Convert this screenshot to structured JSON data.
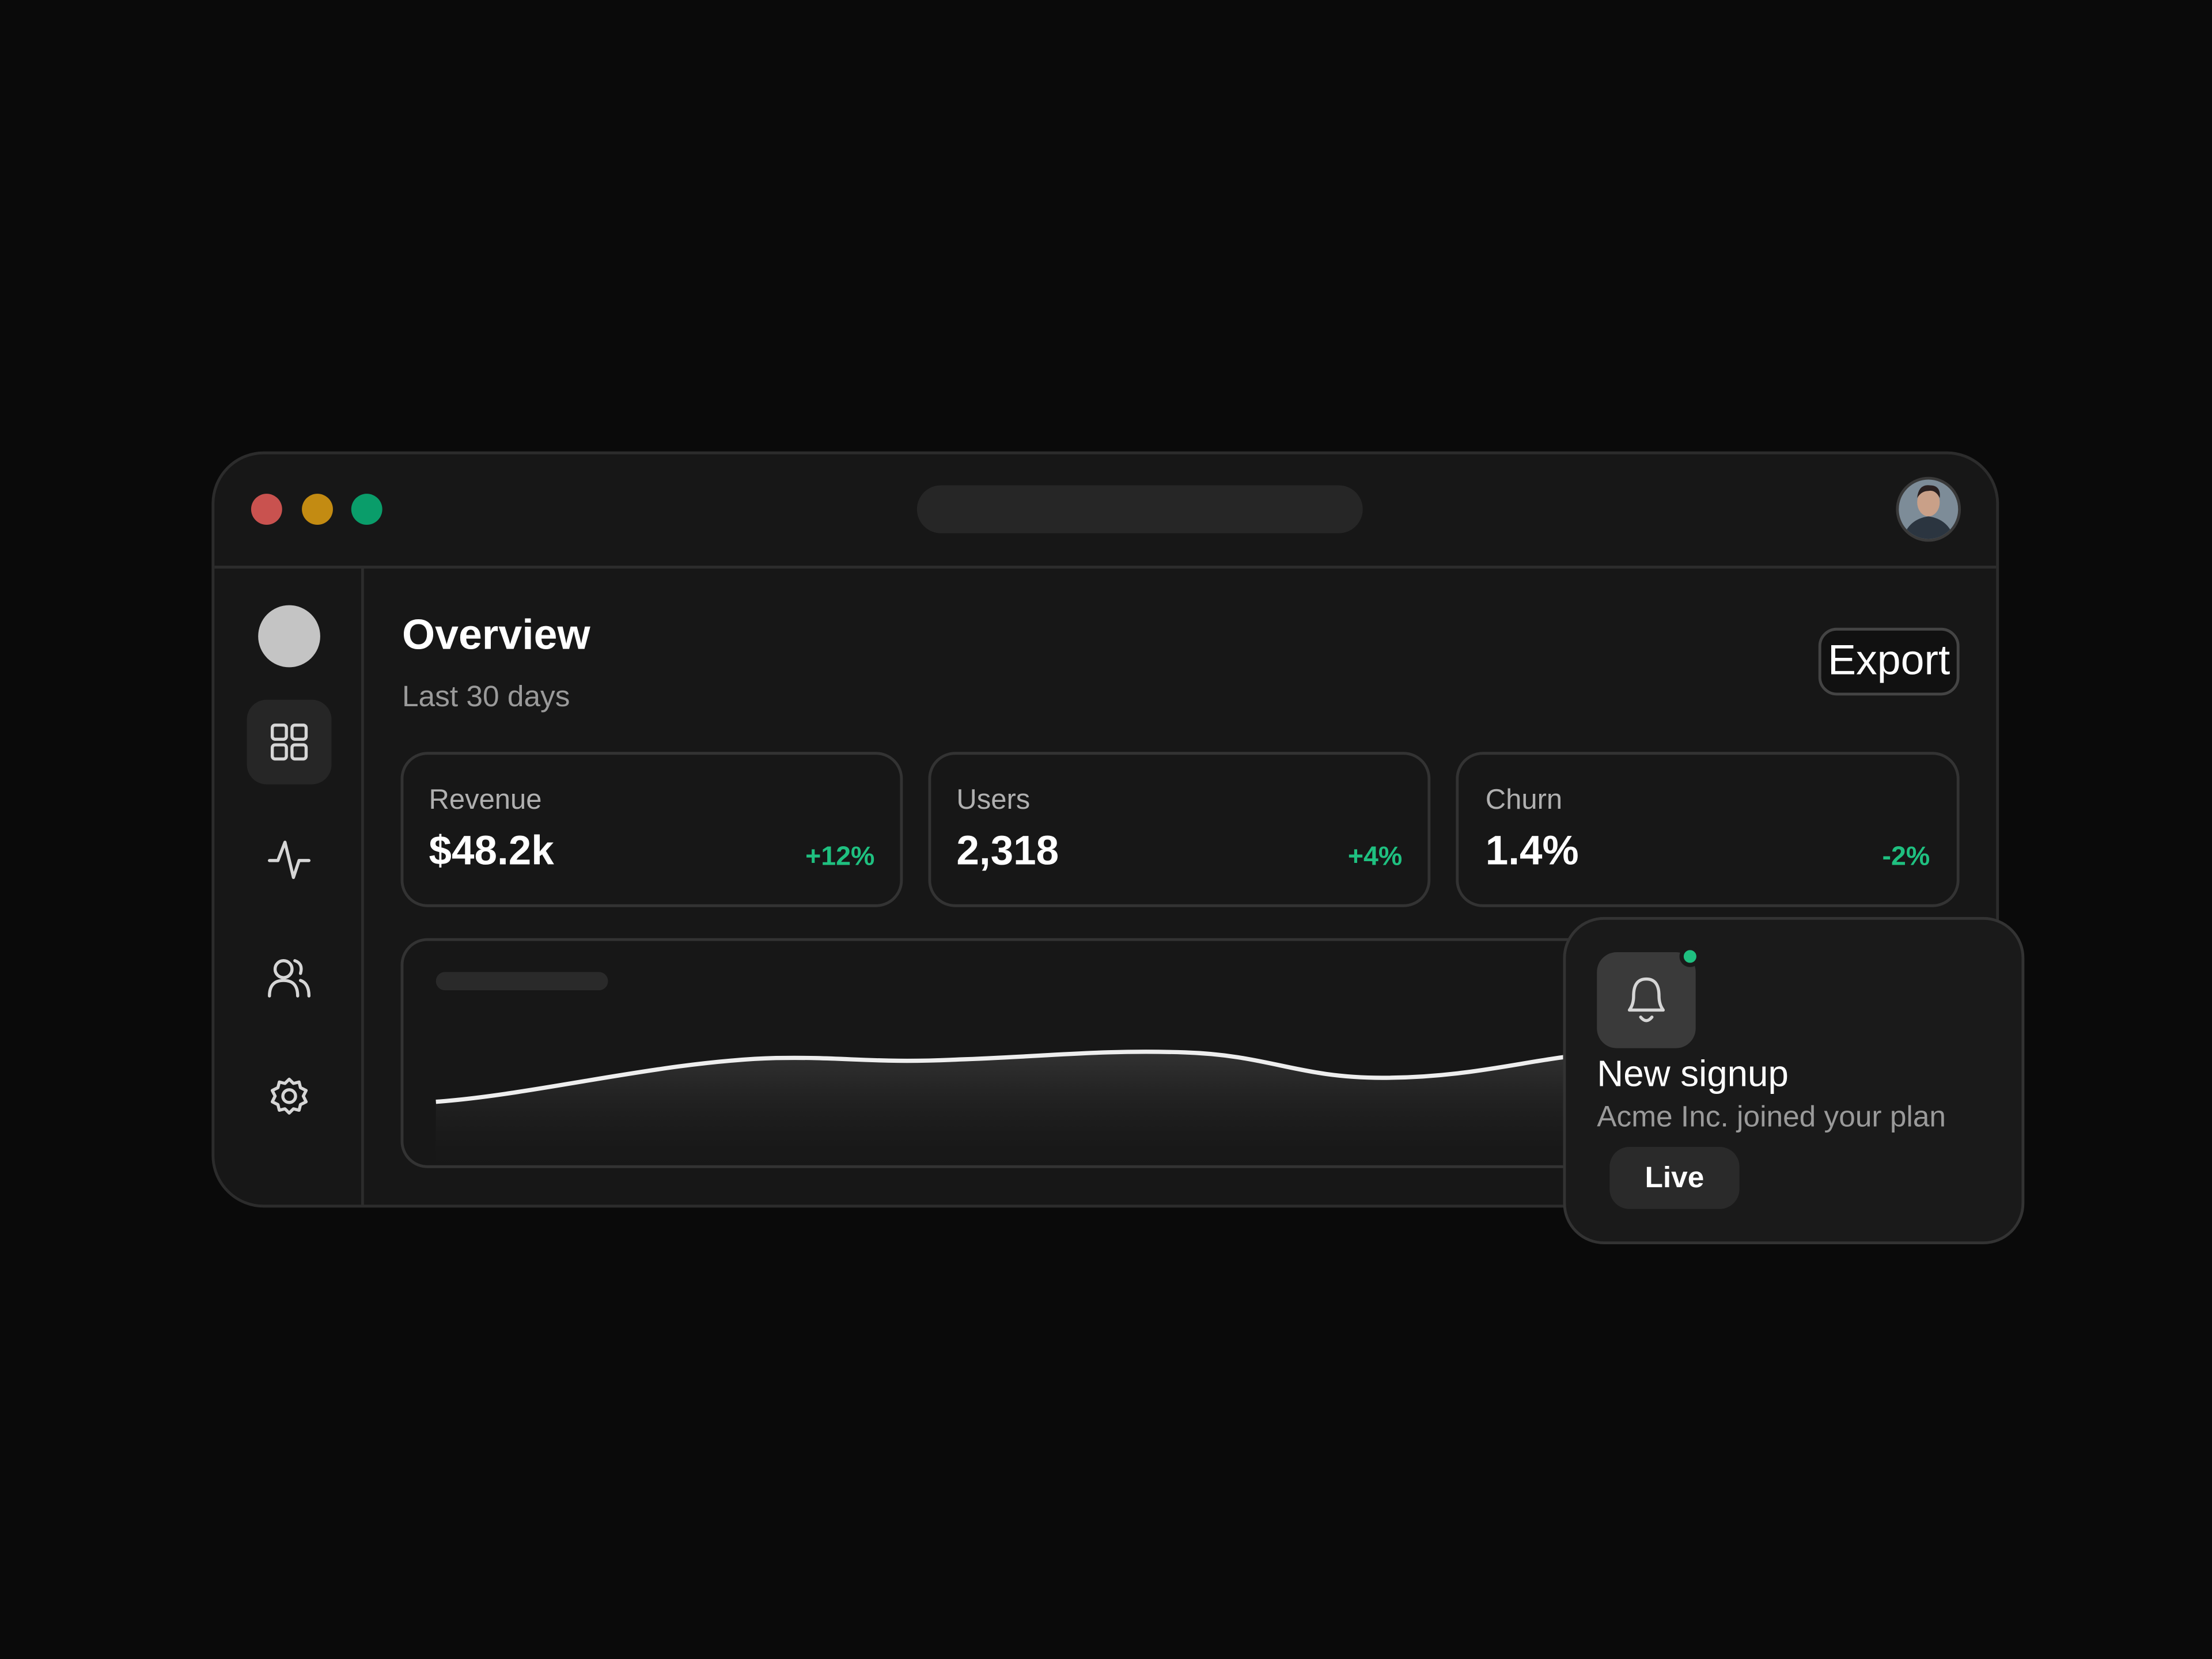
{
  "header": {
    "title": "Overview",
    "subtitle": "Last 30 days",
    "action": "Export"
  },
  "stats": [
    {
      "label": "Revenue",
      "value": "$48.2k",
      "change": "+12%"
    },
    {
      "label": "Users",
      "value": "2,318",
      "change": "+4%"
    },
    {
      "label": "Churn",
      "value": "1.4%",
      "change": "-2%"
    }
  ],
  "notification": {
    "title": "New signup",
    "message": "Acme Inc. joined your plan",
    "badge": "Live"
  }
}
